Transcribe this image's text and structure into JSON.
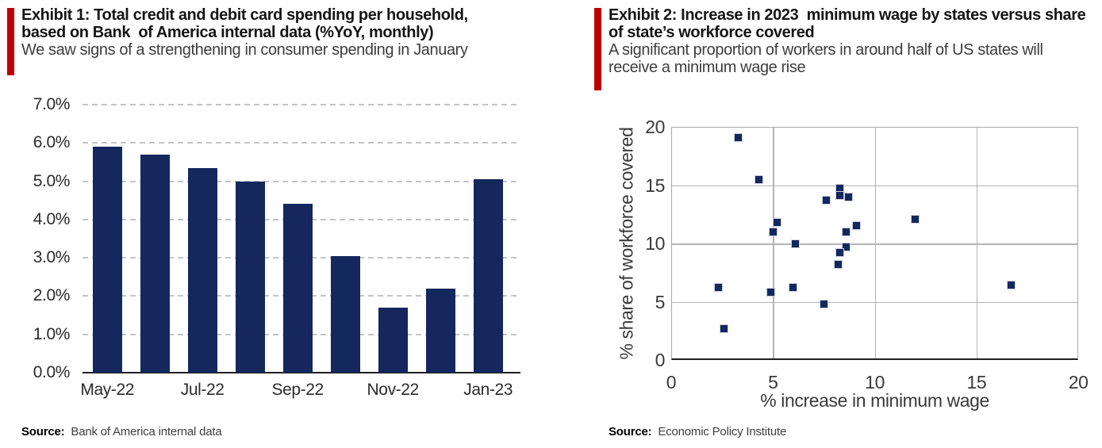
{
  "colors": {
    "accent_red": "#C00000",
    "series_navy": "#14285E",
    "gridline_gray": "#C4C4C4",
    "scatter_grid_gray": "#B3B3B3"
  },
  "left_panel": {
    "title_lines": [
      "Exhibit 1: Total credit and debit card spending per household,",
      "based on Bank  of America internal data (%YoY, monthly)"
    ],
    "subtitle_lines": [
      "We saw signs of a strengthening in consumer spending in January"
    ],
    "source_label": "Source:",
    "source_text": "Bank of America internal data"
  },
  "right_panel": {
    "title_lines": [
      "Exhibit 2: Increase in 2023  minimum wage by states versus share",
      "of state’s workforce covered"
    ],
    "subtitle_lines": [
      "A significant proportion of workers in around half of US states will",
      "receive a minimum wage rise"
    ],
    "source_label": "Source:",
    "source_text": "Economic Policy Institute"
  },
  "chart_data": [
    {
      "type": "bar",
      "title": "Total credit and debit card spending per household (%YoY, monthly)",
      "categories": [
        "May-22",
        "Jun-22",
        "Jul-22",
        "Aug-22",
        "Sep-22",
        "Oct-22",
        "Nov-22",
        "Dec-22",
        "Jan-23"
      ],
      "values": [
        5.9,
        5.7,
        5.35,
        5.0,
        4.4,
        3.05,
        1.7,
        2.2,
        5.05
      ],
      "x_tick_labels": [
        "May-22",
        "Jul-22",
        "Sep-22",
        "Nov-22",
        "Jan-23"
      ],
      "x_tick_every": 2,
      "y_tick_labels": [
        "0.0%",
        "1.0%",
        "2.0%",
        "3.0%",
        "4.0%",
        "5.0%",
        "6.0%",
        "7.0%"
      ],
      "ylim": [
        0,
        7
      ],
      "grid": "horizontal-dashed",
      "bar_color": "#14285E"
    },
    {
      "type": "scatter",
      "xlabel": "% increase in minimum wage",
      "ylabel": "% share of workforce covered",
      "xlim": [
        0,
        20
      ],
      "ylim": [
        0,
        20
      ],
      "x_ticks": [
        "0",
        "5",
        "10",
        "15",
        "20"
      ],
      "y_ticks": [
        "0",
        "5",
        "10",
        "15",
        "20"
      ],
      "grid": "both-solid",
      "marker": "square",
      "marker_color": "#14285E",
      "points": [
        [
          3.3,
          19.1
        ],
        [
          4.3,
          15.5
        ],
        [
          7.6,
          13.7
        ],
        [
          8.3,
          14.7
        ],
        [
          8.3,
          14.1
        ],
        [
          8.7,
          14.0
        ],
        [
          12.0,
          12.1
        ],
        [
          5.2,
          11.8
        ],
        [
          5.0,
          11.0
        ],
        [
          9.1,
          11.5
        ],
        [
          8.6,
          11.0
        ],
        [
          6.1,
          10.0
        ],
        [
          8.6,
          9.7
        ],
        [
          8.3,
          9.2
        ],
        [
          8.2,
          8.2
        ],
        [
          2.3,
          6.2
        ],
        [
          6.0,
          6.2
        ],
        [
          4.9,
          5.8
        ],
        [
          7.5,
          4.8
        ],
        [
          16.7,
          6.4
        ],
        [
          2.6,
          2.7
        ]
      ]
    }
  ]
}
